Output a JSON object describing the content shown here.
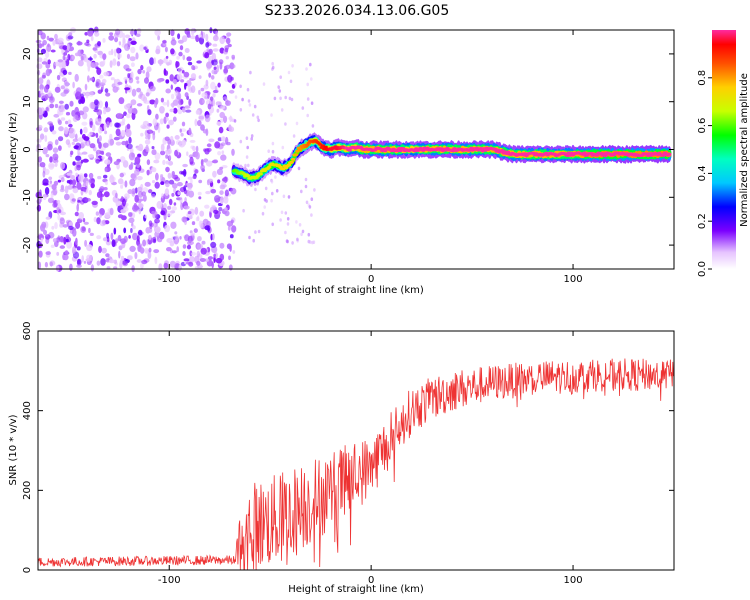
{
  "title": "S233.2026.034.13.06.G05",
  "chart_data": [
    {
      "type": "heatmap",
      "name": "spectrogram",
      "xlabel": "Height of straight line (km)",
      "ylabel": "Frequency (Hz)",
      "xlim": [
        -165,
        150
      ],
      "ylim": [
        -25,
        25
      ],
      "xticks": [
        -100,
        0,
        100
      ],
      "yticks": [
        -20,
        -10,
        0,
        10,
        20
      ],
      "colorbar": {
        "label": "Normalized spectral amplitude",
        "range": [
          0,
          1
        ],
        "ticks": [
          0.0,
          0.2,
          0.4,
          0.6,
          0.8
        ]
      },
      "noise_region_x": [
        -165,
        -68
      ],
      "ridge": {
        "x": [
          -68,
          -64,
          -60,
          -56,
          -52,
          -48,
          -44,
          -40,
          -36,
          -32,
          -28,
          -24,
          -20,
          -16,
          -12,
          -8,
          -4,
          0,
          10,
          20,
          30,
          40,
          50,
          60,
          70,
          80,
          90,
          100,
          110,
          120,
          130,
          140,
          148
        ],
        "freq": [
          -4.5,
          -5,
          -6,
          -5.5,
          -4,
          -3,
          -4,
          -3,
          0,
          1,
          2,
          0.5,
          0,
          0.5,
          0,
          0.5,
          0,
          0,
          0,
          0,
          0,
          0,
          0,
          0,
          -1,
          -1,
          -1,
          -1,
          -1,
          -1,
          -1,
          -1,
          -1
        ],
        "amplitude": [
          0.35,
          0.4,
          0.45,
          0.45,
          0.5,
          0.5,
          0.55,
          0.55,
          0.6,
          0.65,
          0.7,
          0.75,
          0.8,
          0.8,
          0.85,
          0.85,
          0.9,
          0.9,
          0.9,
          0.85,
          0.9,
          0.9,
          0.9,
          0.9,
          0.9,
          0.9,
          0.9,
          0.9,
          0.95,
          0.95,
          0.95,
          0.95,
          0.95
        ]
      }
    },
    {
      "type": "line",
      "name": "snr",
      "xlabel": "Height of straight line (km)",
      "ylabel": "SNR (10 * v/v)",
      "xlim": [
        -165,
        150
      ],
      "ylim": [
        0,
        600
      ],
      "xticks": [
        -100,
        0,
        100
      ],
      "yticks": [
        0,
        200,
        400,
        600
      ],
      "color": "#ee3333",
      "trend": {
        "x": [
          -165,
          -68,
          -64,
          -60,
          -50,
          -40,
          -30,
          -20,
          -10,
          0,
          10,
          20,
          30,
          40,
          50,
          60,
          70,
          80,
          90,
          100,
          110,
          120,
          130,
          140,
          150
        ],
        "y": [
          20,
          25,
          70,
          110,
          120,
          140,
          170,
          200,
          230,
          260,
          330,
          400,
          430,
          450,
          460,
          470,
          475,
          480,
          485,
          485,
          490,
          490,
          490,
          490,
          490
        ]
      },
      "noise_amplitude": {
        "x": [
          -165,
          -68,
          -64,
          -40,
          -20,
          0,
          20,
          60,
          150
        ],
        "y": [
          12,
          12,
          110,
          120,
          100,
          80,
          60,
          45,
          40
        ]
      }
    }
  ],
  "colors": {
    "line": "#ee3333",
    "axis": "#000000"
  }
}
